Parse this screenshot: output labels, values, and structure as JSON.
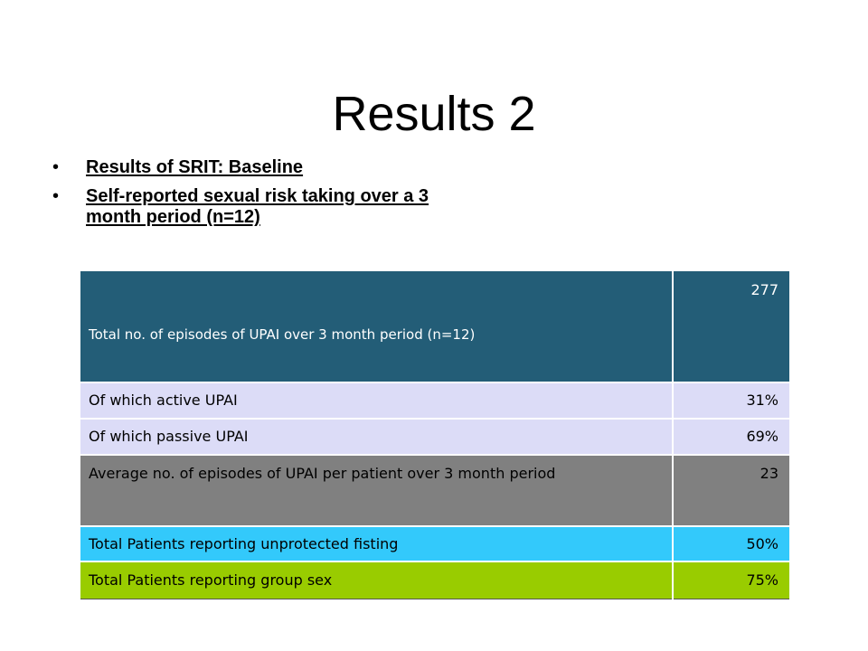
{
  "slide": {
    "title": "Results 2"
  },
  "bullets": [
    {
      "text": "Results of SRIT: Baseline"
    },
    {
      "text": "Self-reported sexual risk taking over a 3 month period (n=12)"
    }
  ],
  "bullet_symbol": "•",
  "table": {
    "rows": [
      {
        "label": "Total no.  of  episodes of  UPAI over 3 month period (n=12)",
        "value": "277",
        "color": "#235d77"
      },
      {
        "label": "Of which active UPAI",
        "value": "31%",
        "color": "#dcdcf7"
      },
      {
        "label": "Of which passive UPAI",
        "value": "69%",
        "color": "#dcdcf7"
      },
      {
        "label": "Average no. of episodes of UPAI per patient over 3 month period",
        "value": "23",
        "color": "#808080"
      },
      {
        "label": "Total Patients reporting unprotected fisting",
        "value": "50%",
        "color": "#33c9fb"
      },
      {
        "label": "Total Patients reporting group sex",
        "value": "75%",
        "color": "#99cc00"
      }
    ]
  }
}
